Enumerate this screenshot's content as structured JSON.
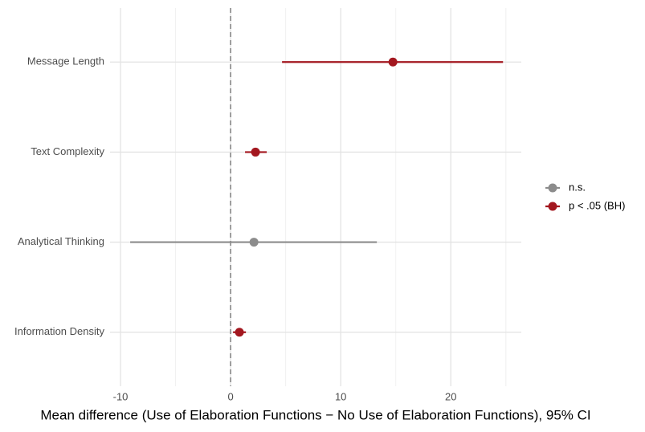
{
  "chart_data": {
    "type": "forest",
    "x_label": "Mean difference (Use of Elaboration Functions − No Use of Elaboration Functions), 95% CI",
    "categories": [
      "Message Length",
      "Text Complexity",
      "Analytical Thinking",
      "Information Density"
    ],
    "series": [
      {
        "name": "n.s.",
        "color": "#8c8c8c",
        "values": [
          null,
          null,
          2.12,
          null
        ],
        "lower": [
          null,
          null,
          -9.12,
          null
        ],
        "upper": [
          null,
          null,
          13.28,
          null
        ]
      },
      {
        "name": "p < .05 (BH)",
        "color": "#a3171f",
        "values": [
          14.74,
          2.26,
          null,
          0.8
        ],
        "lower": [
          4.67,
          1.31,
          null,
          0.22
        ],
        "upper": [
          24.74,
          3.28,
          null,
          1.39
        ]
      }
    ],
    "xlim": [
      -10.95,
      26.4
    ],
    "xticks": [
      -10,
      0,
      10,
      20
    ],
    "minor_xticks": [
      -5,
      5,
      15,
      25
    ],
    "reference_line": 0,
    "grid": true,
    "legend": "right"
  }
}
